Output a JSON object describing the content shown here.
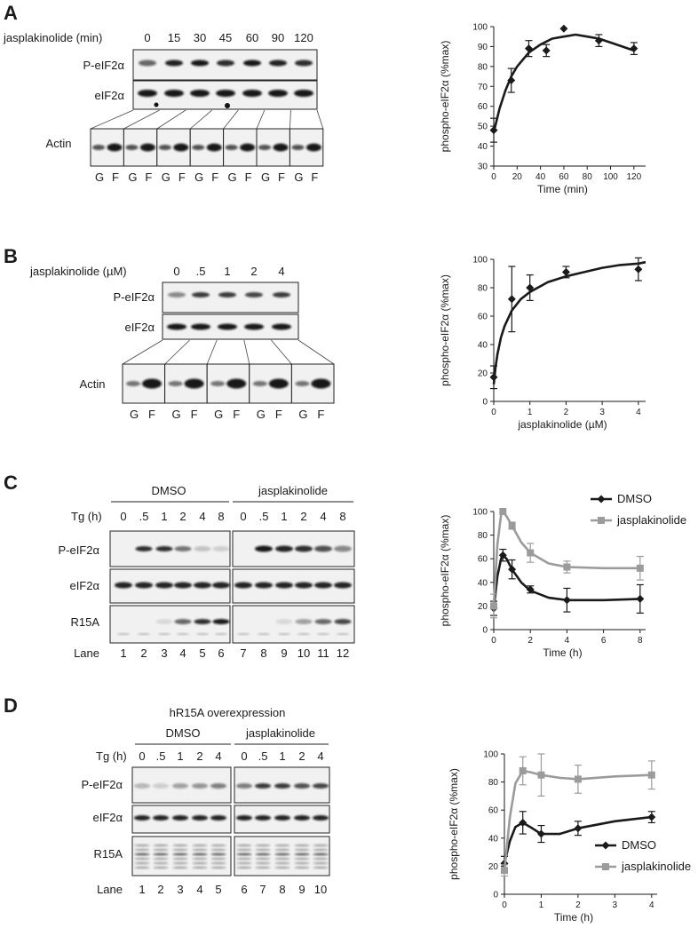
{
  "panels": {
    "A": {
      "letter": "A",
      "treatment_label": "jasplakinolide (min)",
      "lane_values": [
        "0",
        "15",
        "30",
        "45",
        "60",
        "90",
        "120"
      ],
      "rows": [
        "P-eIF2α",
        "eIF2α",
        "Actin"
      ],
      "fraction_labels": [
        "G",
        "F"
      ]
    },
    "B": {
      "letter": "B",
      "treatment_label": "jasplakinolide (µM)",
      "lane_values": [
        "0",
        ".5",
        "1",
        "2",
        "4"
      ],
      "rows": [
        "P-eIF2α",
        "eIF2α",
        "Actin"
      ],
      "fraction_labels": [
        "G",
        "F"
      ]
    },
    "C": {
      "letter": "C",
      "group_labels": [
        "DMSO",
        "jasplakinolide"
      ],
      "treatment_label": "Tg (h)",
      "lane_values": [
        "0",
        ".5",
        "1",
        "2",
        "4",
        "8"
      ],
      "rows": [
        "P-eIF2α",
        "eIF2α",
        "R15A"
      ],
      "lane_row_label": "Lane",
      "lanes": [
        "1",
        "2",
        "3",
        "4",
        "5",
        "6",
        "7",
        "8",
        "9",
        "10",
        "11",
        "12"
      ]
    },
    "D": {
      "letter": "D",
      "header": "hR15A overexpression",
      "group_labels": [
        "DMSO",
        "jasplakinolide"
      ],
      "treatment_label": "Tg (h)",
      "lane_values": [
        "0",
        ".5",
        "1",
        "2",
        "4"
      ],
      "rows": [
        "P-eIF2α",
        "eIF2α",
        "R15A"
      ],
      "lane_row_label": "Lane",
      "lanes": [
        "1",
        "2",
        "3",
        "4",
        "5",
        "6",
        "7",
        "8",
        "9",
        "10"
      ]
    }
  },
  "colors": {
    "black_series": "#1a1a1a",
    "gray_series": "#9b9b9b",
    "blot_bg": "#f1f1f1"
  },
  "chart_data": [
    {
      "id": "A",
      "type": "scatter",
      "xlabel": "Time (min)",
      "ylabel": "phospho-eIF2α (%max)",
      "xlim": [
        0,
        130
      ],
      "ylim": [
        30,
        100
      ],
      "xticks": [
        0,
        20,
        40,
        60,
        80,
        100,
        120
      ],
      "yticks": [
        30,
        40,
        50,
        60,
        70,
        80,
        90,
        100
      ],
      "series": [
        {
          "x": [
            0,
            15,
            30,
            45,
            60,
            90,
            120
          ],
          "y": [
            48,
            73,
            89,
            88,
            99,
            93,
            89
          ],
          "err": [
            6,
            6,
            4,
            3,
            0,
            3,
            3
          ],
          "fit_x": [
            0,
            5,
            10,
            15,
            20,
            30,
            40,
            50,
            60,
            70,
            80,
            90,
            100,
            110,
            120
          ],
          "fit_y": [
            47,
            59,
            68,
            75,
            80,
            87,
            91,
            94,
            95,
            96,
            95,
            94,
            92,
            90,
            88
          ]
        }
      ]
    },
    {
      "id": "B",
      "type": "scatter",
      "xlabel": "jasplakinolide (µM)",
      "ylabel": "phospho-eIF2α (%max)",
      "xlim": [
        0,
        4.2
      ],
      "ylim": [
        0,
        100
      ],
      "xticks": [
        0,
        1,
        2,
        3,
        4
      ],
      "yticks": [
        0,
        20,
        40,
        60,
        80,
        100
      ],
      "series": [
        {
          "x": [
            0,
            0.5,
            1,
            2,
            4
          ],
          "y": [
            17,
            72,
            80,
            91,
            93
          ],
          "err": [
            8,
            23,
            9,
            4,
            8
          ],
          "fit_x": [
            0,
            0.05,
            0.1,
            0.2,
            0.3,
            0.5,
            0.75,
            1,
            1.5,
            2,
            2.5,
            3,
            3.5,
            4,
            4.2
          ],
          "fit_y": [
            12,
            24,
            33,
            45,
            53,
            64,
            72,
            77,
            84,
            88,
            91,
            94,
            96,
            97,
            98
          ]
        }
      ]
    },
    {
      "id": "C",
      "type": "line",
      "xlabel": "Time (h)",
      "ylabel": "phospho-eIF2α (%max)",
      "xlim": [
        0,
        8.3
      ],
      "ylim": [
        0,
        100
      ],
      "xticks": [
        0,
        2,
        4,
        6,
        8
      ],
      "yticks": [
        0,
        20,
        40,
        60,
        80,
        100
      ],
      "legend_position": "top-right",
      "series": [
        {
          "name": "DMSO",
          "color": "#1a1a1a",
          "marker": "diamond",
          "x": [
            0,
            0.5,
            1,
            2,
            4,
            8
          ],
          "y": [
            18,
            63,
            51,
            34,
            25,
            26
          ],
          "err": [
            6,
            5,
            8,
            3,
            10,
            12
          ],
          "fit_x": [
            0,
            0.2,
            0.4,
            0.5,
            0.7,
            1,
            1.5,
            2,
            3,
            4,
            6,
            8
          ],
          "fit_y": [
            18,
            45,
            60,
            63,
            60,
            51,
            40,
            33,
            27,
            25,
            25,
            26
          ]
        },
        {
          "name": "jasplakinolide",
          "color": "#9b9b9b",
          "marker": "square",
          "x": [
            0,
            0.5,
            1,
            2,
            4,
            8
          ],
          "y": [
            20,
            100,
            88,
            65,
            53,
            52
          ],
          "err": [
            10,
            0,
            3,
            8,
            5,
            10
          ],
          "fit_x": [
            0,
            0.2,
            0.4,
            0.5,
            0.7,
            1,
            1.5,
            2,
            3,
            4,
            6,
            8
          ],
          "fit_y": [
            20,
            72,
            97,
            100,
            96,
            88,
            74,
            65,
            56,
            53,
            52,
            52
          ]
        }
      ]
    },
    {
      "id": "D",
      "type": "line",
      "xlabel": "Time (h)",
      "ylabel": "phospho-eIF2α (%max)",
      "xlim": [
        0,
        4.15
      ],
      "ylim": [
        0,
        100
      ],
      "xticks": [
        0,
        1,
        2,
        3,
        4
      ],
      "yticks": [
        0,
        20,
        40,
        60,
        80,
        100
      ],
      "legend_position": "bottom-right",
      "series": [
        {
          "name": "DMSO",
          "color": "#1a1a1a",
          "marker": "diamond",
          "x": [
            0,
            0.5,
            1,
            2,
            4
          ],
          "y": [
            22,
            51,
            43,
            47,
            55
          ],
          "err": [
            5,
            8,
            6,
            5,
            4
          ],
          "fit_x": [
            0,
            0.15,
            0.3,
            0.5,
            0.7,
            1,
            1.5,
            2,
            3,
            4
          ],
          "fit_y": [
            22,
            38,
            48,
            51,
            48,
            43,
            43,
            47,
            52,
            55
          ]
        },
        {
          "name": "jasplakinolide",
          "color": "#9b9b9b",
          "marker": "square",
          "x": [
            0,
            0.5,
            1,
            2,
            4
          ],
          "y": [
            17,
            88,
            85,
            82,
            85
          ],
          "err": [
            4,
            10,
            15,
            10,
            10
          ],
          "fit_x": [
            0,
            0.15,
            0.3,
            0.5,
            0.7,
            1,
            1.5,
            2,
            3,
            4
          ],
          "fit_y": [
            17,
            55,
            79,
            88,
            87,
            85,
            83,
            82,
            84,
            85
          ]
        }
      ]
    }
  ]
}
